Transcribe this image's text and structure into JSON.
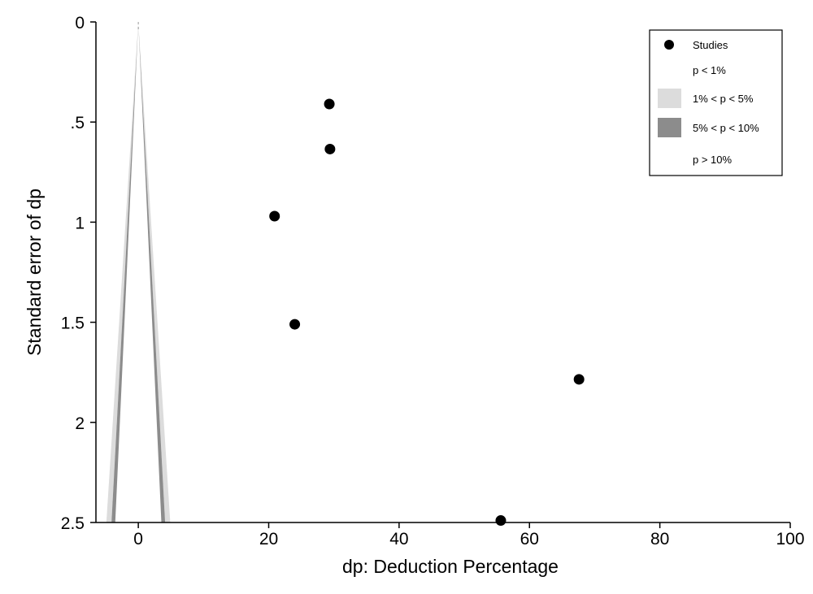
{
  "chart_data": {
    "type": "scatter",
    "title": "",
    "xlabel": "dp: Deduction Percentage",
    "ylabel": "Standard error of dp",
    "xlim": [
      -6.5,
      100
    ],
    "ylim": [
      0,
      2.5
    ],
    "y_reversed": true,
    "grid": false,
    "x_ticks": [
      0,
      20,
      40,
      60,
      80,
      100
    ],
    "x_tick_labels": [
      "0",
      "20",
      "40",
      "60",
      "80",
      "100"
    ],
    "y_ticks": [
      0,
      0.5,
      1,
      1.5,
      2,
      2.5
    ],
    "y_tick_labels": [
      "0",
      ".5",
      "1",
      "1.5",
      "2",
      "2.5"
    ],
    "series": [
      {
        "name": "Studies",
        "x": [
          29.3,
          29.4,
          20.9,
          24.0,
          67.6,
          55.6
        ],
        "y": [
          0.41,
          0.635,
          0.97,
          1.51,
          1.785,
          2.49
        ]
      }
    ],
    "contours": {
      "z_inner": 1.645,
      "z_outer": 1.96
    },
    "legend": {
      "position": "top-right",
      "entries": [
        {
          "label": "Studies",
          "type": "marker",
          "color": "#000000"
        },
        {
          "label": "p < 1%",
          "type": "none",
          "color": "#ffffff"
        },
        {
          "label": "1% < p < 5%",
          "type": "swatch",
          "color": "#dcdcdc"
        },
        {
          "label": "5% < p < 10%",
          "type": "swatch",
          "color": "#8c8c8c"
        },
        {
          "label": "p > 10%",
          "type": "none",
          "color": "#ffffff"
        }
      ]
    },
    "colors": {
      "marker": "#000000",
      "band_light": "#dcdcdc",
      "band_dark": "#8c8c8c",
      "axis": "#000000"
    }
  }
}
